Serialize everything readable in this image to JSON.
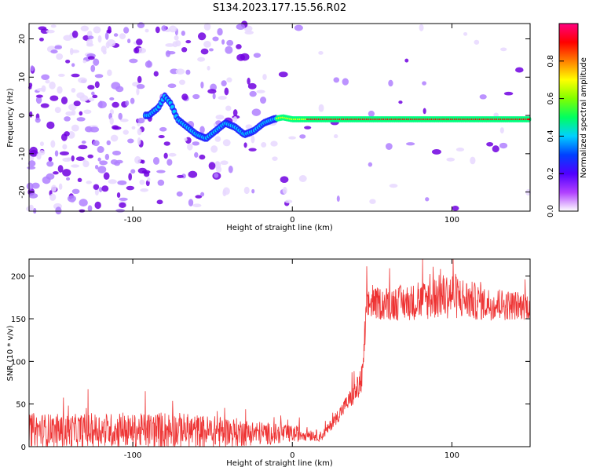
{
  "title": "S134.2023.177.15.56.R02",
  "chart_data": [
    {
      "type": "heatmap",
      "xlabel": "Height of straight line (km)",
      "ylabel": "Frequency (Hz)",
      "xlim": [
        -165,
        149
      ],
      "ylim": [
        -25,
        24
      ],
      "x_ticks": [
        -100,
        0,
        100
      ],
      "y_ticks": [
        -20,
        -10,
        0,
        10,
        20
      ],
      "colorbar": {
        "label": "Normalized spectral amplitude",
        "range": [
          0,
          1
        ],
        "ticks": [
          0.0,
          0.2,
          0.4,
          0.6,
          0.8
        ],
        "colors": [
          "#ffffff",
          "#e8d8ff",
          "#b080ff",
          "#7000e0",
          "#2020ff",
          "#00c8ff",
          "#00ff80",
          "#80ff00",
          "#ffff00",
          "#ff8000",
          "#ff0000",
          "#ff0080"
        ]
      },
      "signal_trace": {
        "x": [
          -90,
          -84,
          -80,
          -76,
          -72,
          -66,
          -60,
          -54,
          -48,
          -42,
          -36,
          -30,
          -24,
          -18,
          -12,
          -6,
          0,
          10,
          20,
          40,
          60,
          80,
          100,
          120,
          149
        ],
        "y": [
          0,
          2,
          5,
          3,
          -1,
          -3,
          -5,
          -6,
          -4,
          -2,
          -3,
          -5,
          -4,
          -2,
          -1,
          -0.5,
          -1,
          -1,
          -1,
          -1,
          -1,
          -1,
          -1,
          -1,
          -1
        ]
      },
      "noise_region_x": [
        -165,
        -90
      ],
      "coherent_region_x": [
        -10,
        149
      ]
    },
    {
      "type": "line",
      "xlabel": "Height of straight line (km)",
      "ylabel": "SNR (10 * v/v)",
      "xlim": [
        -165,
        149
      ],
      "ylim": [
        0,
        220
      ],
      "x_ticks": [
        -100,
        0,
        100
      ],
      "y_ticks": [
        0,
        50,
        100,
        150,
        200
      ],
      "series": [
        {
          "color": "#ee3333",
          "x": [
            -165,
            -140,
            -120,
            -100,
            -80,
            -60,
            -40,
            -20,
            -10,
            0,
            10,
            18,
            22,
            28,
            34,
            40,
            44,
            46,
            48,
            60,
            80,
            90,
            100,
            110,
            120,
            135,
            149
          ],
          "y": [
            20,
            18,
            20,
            18,
            20,
            18,
            17,
            16,
            15,
            15,
            15,
            12,
            20,
            35,
            50,
            65,
            80,
            150,
            168,
            168,
            170,
            175,
            178,
            172,
            168,
            166,
            165
          ],
          "noise_amplitude": [
            20,
            20,
            20,
            20,
            22,
            20,
            18,
            14,
            12,
            10,
            8,
            6,
            6,
            8,
            10,
            14,
            20,
            25,
            18,
            20,
            22,
            26,
            28,
            24,
            20,
            18,
            16
          ]
        }
      ]
    }
  ]
}
